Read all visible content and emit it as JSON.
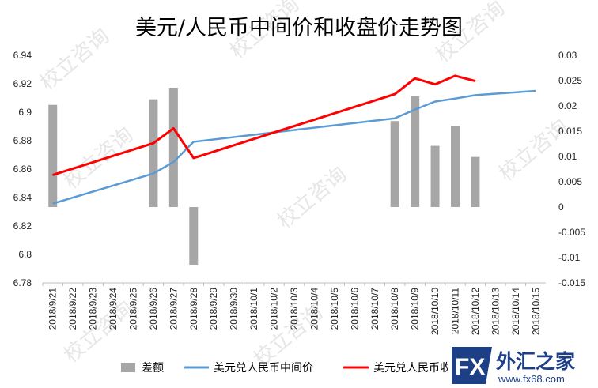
{
  "chart_data": {
    "type": "bar+line",
    "title": "美元/人民币中间价和收盘价走势图",
    "categories": [
      "2018/9/21",
      "2018/9/22",
      "2018/9/23",
      "2018/9/24",
      "2018/9/25",
      "2018/9/26",
      "2018/9/27",
      "2018/9/28",
      "2018/9/29",
      "2018/9/30",
      "2018/10/1",
      "2018/10/2",
      "2018/10/3",
      "2018/10/4",
      "2018/10/5",
      "2018/10/6",
      "2018/10/7",
      "2018/10/8",
      "2018/10/9",
      "2018/10/10",
      "2018/10/11",
      "2018/10/12",
      "2018/10/13",
      "2018/10/14",
      "2018/10/15"
    ],
    "y_left": {
      "min": 6.78,
      "max": 6.94,
      "step": 0.02,
      "ticks": [
        "6.94",
        "6.92",
        "6.9",
        "6.88",
        "6.86",
        "6.84",
        "6.82",
        "6.8",
        "6.78"
      ]
    },
    "y_right": {
      "min": -0.015,
      "max": 0.03,
      "step": 0.005,
      "ticks": [
        "0.03",
        "0.025",
        "0.02",
        "0.015",
        "0.01",
        "0.005",
        "0",
        "-0.005",
        "-0.01",
        "-0.015"
      ]
    },
    "grid": false,
    "legend_position": "bottom",
    "series": [
      {
        "name": "差额",
        "kind": "bar",
        "axis": "right",
        "color": "#a6a6a6",
        "points": [
          {
            "x": "2018/9/21",
            "y": 0.0202
          },
          {
            "x": "2018/9/26",
            "y": 0.0213
          },
          {
            "x": "2018/9/27",
            "y": 0.0236
          },
          {
            "x": "2018/9/28",
            "y": -0.0114
          },
          {
            "x": "2018/10/8",
            "y": 0.017
          },
          {
            "x": "2018/10/9",
            "y": 0.0219
          },
          {
            "x": "2018/10/10",
            "y": 0.0121
          },
          {
            "x": "2018/10/11",
            "y": 0.016
          },
          {
            "x": "2018/10/12",
            "y": 0.0099
          }
        ]
      },
      {
        "name": "美元兑人民币中间价",
        "kind": "line",
        "axis": "left",
        "color": "#5b9bd5",
        "points": [
          {
            "x": "2018/9/21",
            "y": 6.8357
          },
          {
            "x": "2018/9/26",
            "y": 6.8569
          },
          {
            "x": "2018/9/27",
            "y": 6.865
          },
          {
            "x": "2018/9/28",
            "y": 6.8792
          },
          {
            "x": "2018/10/8",
            "y": 6.8957
          },
          {
            "x": "2018/10/9",
            "y": 6.9019
          },
          {
            "x": "2018/10/10",
            "y": 6.9075
          },
          {
            "x": "2018/10/11",
            "y": 6.9096
          },
          {
            "x": "2018/10/12",
            "y": 6.912
          },
          {
            "x": "2018/10/15",
            "y": 6.915
          }
        ]
      },
      {
        "name": "美元兑人民币收盘价",
        "kind": "line",
        "axis": "left",
        "color": "#ff0000",
        "points": [
          {
            "x": "2018/9/21",
            "y": 6.8559
          },
          {
            "x": "2018/9/26",
            "y": 6.8782
          },
          {
            "x": "2018/9/27",
            "y": 6.8886
          },
          {
            "x": "2018/9/28",
            "y": 6.8678
          },
          {
            "x": "2018/10/8",
            "y": 6.9127
          },
          {
            "x": "2018/10/9",
            "y": 6.9238
          },
          {
            "x": "2018/10/10",
            "y": 6.9196
          },
          {
            "x": "2018/10/11",
            "y": 6.9256
          },
          {
            "x": "2018/10/12",
            "y": 6.9219
          }
        ]
      }
    ]
  },
  "watermark": {
    "text": "校立咨询"
  },
  "logo": {
    "fx": "FX",
    "name": "外汇之家",
    "url": "www.fx68.com",
    "accent": "#1d3f86"
  }
}
